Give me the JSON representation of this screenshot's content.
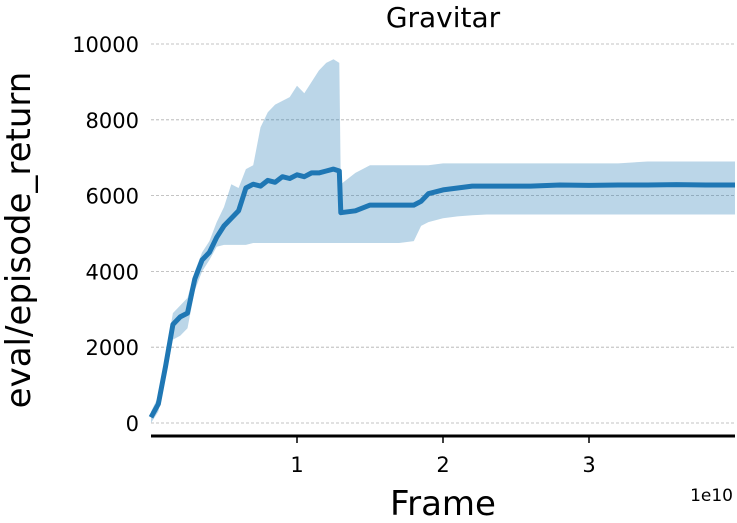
{
  "chart_data": {
    "type": "line",
    "title": "Gravitar",
    "xlabel": "Frame",
    "ylabel": "eval/episode_return",
    "x_offset_text": "1e10",
    "x_unit": "frames",
    "xlim": [
      0,
      40000000000
    ],
    "ylim": [
      0,
      10000
    ],
    "x_ticks": [
      10000000000,
      20000000000,
      30000000000
    ],
    "x_tick_labels": [
      "1",
      "2",
      "3"
    ],
    "y_ticks": [
      0,
      2000,
      4000,
      6000,
      8000,
      10000
    ],
    "y_tick_labels": [
      "0",
      "2000",
      "4000",
      "6000",
      "8000",
      "10000"
    ],
    "grid": "horizontal dashed",
    "colors": {
      "line": "#1f77b4",
      "band": "#1f77b4"
    },
    "series": [
      {
        "x": [
          0,
          500000000,
          1000000000,
          1500000000,
          2000000000,
          2500000000,
          3000000000,
          3500000000,
          4000000000,
          4500000000,
          5000000000,
          5500000000,
          6000000000,
          6500000000,
          7000000000,
          7500000000,
          8000000000,
          8500000000,
          9000000000,
          9500000000,
          10000000000,
          10500000000,
          11000000000,
          11500000000,
          12000000000,
          12500000000,
          12900000000,
          13000000000,
          14000000000,
          15000000000,
          16000000000,
          17000000000,
          18000000000,
          18500000000,
          19000000000,
          20000000000,
          21000000000,
          22000000000,
          23000000000,
          24000000000,
          26000000000,
          28000000000,
          30000000000,
          32000000000,
          34000000000,
          36000000000,
          38000000000,
          40000000000
        ],
        "y": [
          150,
          500,
          1500,
          2600,
          2800,
          2900,
          3800,
          4300,
          4500,
          4900,
          5200,
          5400,
          5600,
          6200,
          6300,
          6250,
          6400,
          6350,
          6500,
          6450,
          6550,
          6500,
          6600,
          6600,
          6650,
          6700,
          6650,
          5550,
          5600,
          5750,
          5750,
          5750,
          5750,
          5850,
          6050,
          6150,
          6200,
          6250,
          6250,
          6250,
          6250,
          6280,
          6270,
          6280,
          6280,
          6290,
          6280,
          6280
        ],
        "lower": [
          0,
          300,
          1200,
          2200,
          2300,
          2500,
          3500,
          4000,
          4300,
          4650,
          4700,
          4700,
          4700,
          4700,
          4750,
          4750,
          4750,
          4750,
          4750,
          4750,
          4750,
          4750,
          4750,
          4750,
          4750,
          4750,
          4750,
          4750,
          4750,
          4750,
          4750,
          4750,
          4800,
          5200,
          5300,
          5400,
          5450,
          5480,
          5500,
          5500,
          5500,
          5500,
          5500,
          5500,
          5500,
          5500,
          5500,
          5500
        ],
        "upper": [
          300,
          700,
          1800,
          2900,
          3100,
          3300,
          4000,
          4500,
          4800,
          5300,
          5700,
          6300,
          6200,
          6700,
          6800,
          7800,
          8200,
          8400,
          8500,
          8600,
          8900,
          8700,
          9000,
          9300,
          9500,
          9600,
          9500,
          6300,
          6600,
          6800,
          6800,
          6800,
          6800,
          6800,
          6800,
          6850,
          6850,
          6850,
          6850,
          6850,
          6850,
          6850,
          6850,
          6850,
          6900,
          6900,
          6900,
          6900
        ]
      }
    ]
  }
}
